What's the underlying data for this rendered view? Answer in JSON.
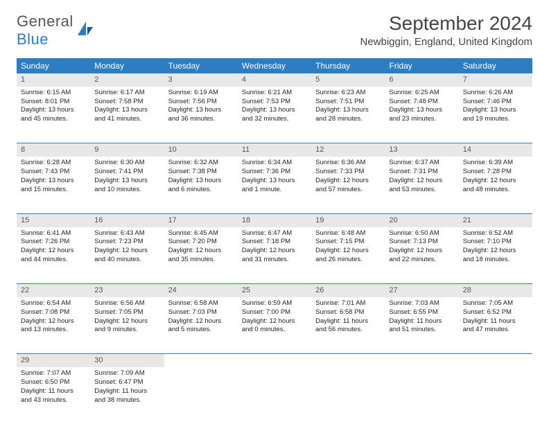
{
  "logo": {
    "text1": "General",
    "text2": "Blue"
  },
  "title": "September 2024",
  "location": "Newbiggin, England, United Kingdom",
  "header_color": "#2d7dc4",
  "daynum_bg": "#e8e8e8",
  "weekdays": [
    "Sunday",
    "Monday",
    "Tuesday",
    "Wednesday",
    "Thursday",
    "Friday",
    "Saturday"
  ],
  "weeks": [
    [
      {
        "n": "1",
        "sr": "6:15 AM",
        "ss": "8:01 PM",
        "dl": "13 hours and 45 minutes."
      },
      {
        "n": "2",
        "sr": "6:17 AM",
        "ss": "7:58 PM",
        "dl": "13 hours and 41 minutes."
      },
      {
        "n": "3",
        "sr": "6:19 AM",
        "ss": "7:56 PM",
        "dl": "13 hours and 36 minutes."
      },
      {
        "n": "4",
        "sr": "6:21 AM",
        "ss": "7:53 PM",
        "dl": "13 hours and 32 minutes."
      },
      {
        "n": "5",
        "sr": "6:23 AM",
        "ss": "7:51 PM",
        "dl": "13 hours and 28 minutes."
      },
      {
        "n": "6",
        "sr": "6:25 AM",
        "ss": "7:48 PM",
        "dl": "13 hours and 23 minutes."
      },
      {
        "n": "7",
        "sr": "6:26 AM",
        "ss": "7:46 PM",
        "dl": "13 hours and 19 minutes."
      }
    ],
    [
      {
        "n": "8",
        "sr": "6:28 AM",
        "ss": "7:43 PM",
        "dl": "13 hours and 15 minutes."
      },
      {
        "n": "9",
        "sr": "6:30 AM",
        "ss": "7:41 PM",
        "dl": "13 hours and 10 minutes."
      },
      {
        "n": "10",
        "sr": "6:32 AM",
        "ss": "7:38 PM",
        "dl": "13 hours and 6 minutes."
      },
      {
        "n": "11",
        "sr": "6:34 AM",
        "ss": "7:36 PM",
        "dl": "13 hours and 1 minute."
      },
      {
        "n": "12",
        "sr": "6:36 AM",
        "ss": "7:33 PM",
        "dl": "12 hours and 57 minutes."
      },
      {
        "n": "13",
        "sr": "6:37 AM",
        "ss": "7:31 PM",
        "dl": "12 hours and 53 minutes."
      },
      {
        "n": "14",
        "sr": "6:39 AM",
        "ss": "7:28 PM",
        "dl": "12 hours and 48 minutes."
      }
    ],
    [
      {
        "n": "15",
        "sr": "6:41 AM",
        "ss": "7:26 PM",
        "dl": "12 hours and 44 minutes."
      },
      {
        "n": "16",
        "sr": "6:43 AM",
        "ss": "7:23 PM",
        "dl": "12 hours and 40 minutes."
      },
      {
        "n": "17",
        "sr": "6:45 AM",
        "ss": "7:20 PM",
        "dl": "12 hours and 35 minutes."
      },
      {
        "n": "18",
        "sr": "6:47 AM",
        "ss": "7:18 PM",
        "dl": "12 hours and 31 minutes."
      },
      {
        "n": "19",
        "sr": "6:48 AM",
        "ss": "7:15 PM",
        "dl": "12 hours and 26 minutes."
      },
      {
        "n": "20",
        "sr": "6:50 AM",
        "ss": "7:13 PM",
        "dl": "12 hours and 22 minutes."
      },
      {
        "n": "21",
        "sr": "6:52 AM",
        "ss": "7:10 PM",
        "dl": "12 hours and 18 minutes."
      }
    ],
    [
      {
        "n": "22",
        "sr": "6:54 AM",
        "ss": "7:08 PM",
        "dl": "12 hours and 13 minutes."
      },
      {
        "n": "23",
        "sr": "6:56 AM",
        "ss": "7:05 PM",
        "dl": "12 hours and 9 minutes."
      },
      {
        "n": "24",
        "sr": "6:58 AM",
        "ss": "7:03 PM",
        "dl": "12 hours and 5 minutes."
      },
      {
        "n": "25",
        "sr": "6:59 AM",
        "ss": "7:00 PM",
        "dl": "12 hours and 0 minutes."
      },
      {
        "n": "26",
        "sr": "7:01 AM",
        "ss": "6:58 PM",
        "dl": "11 hours and 56 minutes."
      },
      {
        "n": "27",
        "sr": "7:03 AM",
        "ss": "6:55 PM",
        "dl": "11 hours and 51 minutes."
      },
      {
        "n": "28",
        "sr": "7:05 AM",
        "ss": "6:52 PM",
        "dl": "11 hours and 47 minutes."
      }
    ],
    [
      {
        "n": "29",
        "sr": "7:07 AM",
        "ss": "6:50 PM",
        "dl": "11 hours and 43 minutes."
      },
      {
        "n": "30",
        "sr": "7:09 AM",
        "ss": "6:47 PM",
        "dl": "11 hours and 38 minutes."
      },
      null,
      null,
      null,
      null,
      null
    ]
  ],
  "labels": {
    "sunrise": "Sunrise:",
    "sunset": "Sunset:",
    "daylight": "Daylight:"
  }
}
